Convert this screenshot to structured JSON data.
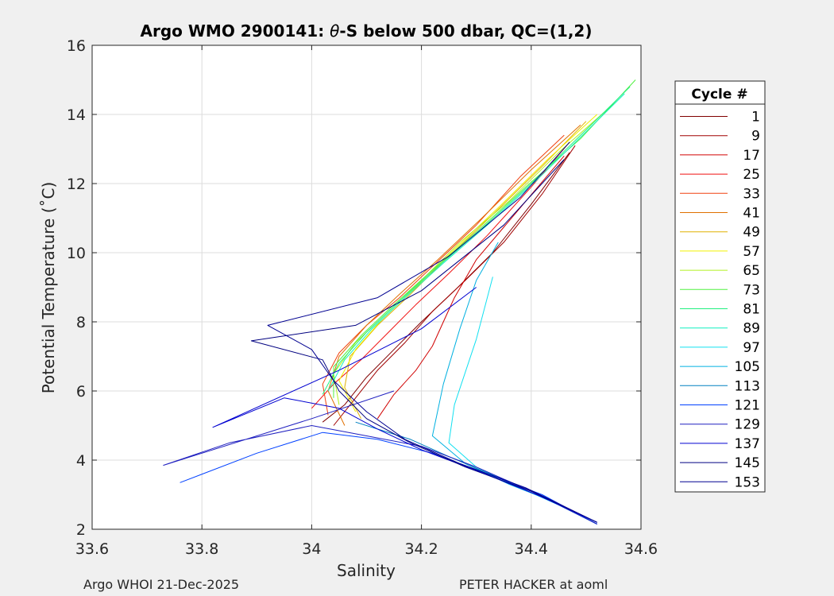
{
  "footer": {
    "left": "Argo WHOI 21-Dec-2025",
    "right": "PETER HACKER at aoml"
  },
  "chart_data": {
    "type": "line",
    "title_prefix": "Argo WMO 2900141: ",
    "title_theta": "θ",
    "title_suffix": "-S below 500 dbar,  QC=(1,2)",
    "xlabel": "Salinity",
    "ylabel": "Potential Temperature (˚C)",
    "xlim": [
      33.6,
      34.6
    ],
    "ylim": [
      2,
      16
    ],
    "xticks": [
      33.6,
      33.8,
      34,
      34.2,
      34.4,
      34.6
    ],
    "xtick_labels": [
      "33.6",
      "33.8",
      "34",
      "34.2",
      "34.4",
      "34.6"
    ],
    "yticks": [
      2,
      4,
      6,
      8,
      10,
      12,
      14,
      16
    ],
    "ytick_labels": [
      "2",
      "4",
      "6",
      "8",
      "10",
      "12",
      "14",
      "16"
    ],
    "grid": true,
    "legend": {
      "title": "Cycle #",
      "placement": "outside-right",
      "entries": [
        {
          "label": "1",
          "color": "#800000"
        },
        {
          "label": "9",
          "color": "#a00000"
        },
        {
          "label": "17",
          "color": "#d00000"
        },
        {
          "label": "25",
          "color": "#f01010"
        },
        {
          "label": "33",
          "color": "#f04010"
        },
        {
          "label": "41",
          "color": "#e07000"
        },
        {
          "label": "49",
          "color": "#e0b000"
        },
        {
          "label": "57",
          "color": "#f0f000"
        },
        {
          "label": "65",
          "color": "#b0f020"
        },
        {
          "label": "73",
          "color": "#50f040"
        },
        {
          "label": "81",
          "color": "#20f080"
        },
        {
          "label": "89",
          "color": "#10f0c0"
        },
        {
          "label": "97",
          "color": "#10e0f0"
        },
        {
          "label": "105",
          "color": "#00b0e0"
        },
        {
          "label": "113",
          "color": "#0080c0"
        },
        {
          "label": "121",
          "color": "#0040ff"
        },
        {
          "label": "129",
          "color": "#2020c0"
        },
        {
          "label": "137",
          "color": "#0000d0"
        },
        {
          "label": "145",
          "color": "#000080"
        },
        {
          "label": "153",
          "color": "#000090"
        }
      ]
    },
    "series": [
      {
        "color": "#800000",
        "x": [
          34.02,
          34.06,
          34.1,
          34.15,
          34.2,
          34.26,
          34.33,
          34.4,
          34.47
        ],
        "y": [
          5.1,
          5.6,
          6.4,
          7.2,
          8.0,
          8.9,
          10.0,
          11.4,
          12.9
        ]
      },
      {
        "color": "#a00000",
        "x": [
          34.04,
          34.08,
          34.12,
          34.17,
          34.22,
          34.28,
          34.35,
          34.42,
          34.48
        ],
        "y": [
          5.0,
          5.8,
          6.6,
          7.4,
          8.3,
          9.2,
          10.3,
          11.7,
          13.1
        ]
      },
      {
        "color": "#d00000",
        "x": [
          34.12,
          34.15,
          34.19,
          34.22,
          34.24,
          34.26,
          34.3,
          34.38,
          34.46
        ],
        "y": [
          5.2,
          5.9,
          6.6,
          7.3,
          8.0,
          8.7,
          9.8,
          11.3,
          12.8
        ]
      },
      {
        "color": "#f01010",
        "x": [
          34.0,
          34.04,
          34.09,
          34.14,
          34.19,
          34.25,
          34.32,
          34.4,
          34.47
        ],
        "y": [
          5.5,
          6.2,
          6.9,
          7.7,
          8.5,
          9.4,
          10.5,
          11.9,
          13.2
        ]
      },
      {
        "color": "#f04010",
        "x": [
          34.03,
          34.02,
          34.05,
          34.1,
          34.16,
          34.22,
          34.3,
          34.38,
          34.46
        ],
        "y": [
          5.3,
          6.2,
          7.1,
          7.9,
          8.7,
          9.6,
          10.8,
          12.2,
          13.4
        ]
      },
      {
        "color": "#e07000",
        "x": [
          34.06,
          34.03,
          34.05,
          34.1,
          34.16,
          34.23,
          34.31,
          34.4,
          34.49
        ],
        "y": [
          5.0,
          6.0,
          7.0,
          7.9,
          8.8,
          9.8,
          11.0,
          12.4,
          13.7
        ]
      },
      {
        "color": "#e0b000",
        "x": [
          34.09,
          34.06,
          34.07,
          34.12,
          34.18,
          34.25,
          34.33,
          34.42,
          34.5
        ],
        "y": [
          5.2,
          6.1,
          7.0,
          7.9,
          8.8,
          9.9,
          11.1,
          12.5,
          13.8
        ]
      },
      {
        "color": "#f0f000",
        "x": [
          34.08,
          34.05,
          34.08,
          34.13,
          34.19,
          34.26,
          34.34,
          34.43,
          34.52
        ],
        "y": [
          5.4,
          6.3,
          7.2,
          8.1,
          9.0,
          10.1,
          11.3,
          12.7,
          14.0
        ]
      },
      {
        "color": "#b0f020",
        "x": [
          34.05,
          34.04,
          34.08,
          34.14,
          34.2,
          34.27,
          34.36,
          34.45,
          34.55
        ],
        "y": [
          5.6,
          6.5,
          7.4,
          8.3,
          9.2,
          10.3,
          11.5,
          12.9,
          14.3
        ]
      },
      {
        "color": "#50f040",
        "x": [
          34.04,
          34.04,
          34.09,
          34.15,
          34.22,
          34.3,
          34.39,
          34.49,
          34.59
        ],
        "y": [
          5.8,
          6.7,
          7.6,
          8.5,
          9.5,
          10.6,
          11.9,
          13.3,
          15.0
        ]
      },
      {
        "color": "#20f080",
        "x": [
          34.02,
          34.05,
          34.1,
          34.16,
          34.23,
          34.31,
          34.4,
          34.49,
          34.58
        ],
        "y": [
          5.9,
          6.8,
          7.7,
          8.6,
          9.6,
          10.7,
          12.0,
          13.4,
          14.8
        ]
      },
      {
        "color": "#10f0c0",
        "x": [
          34.03,
          34.06,
          34.11,
          34.17,
          34.24,
          34.32,
          34.41,
          34.5,
          34.57
        ],
        "y": [
          6.0,
          6.9,
          7.8,
          8.7,
          9.7,
          10.8,
          12.1,
          13.5,
          14.6
        ]
      },
      {
        "color": "#10e0f0",
        "x": [
          34.52,
          34.45,
          34.38,
          34.3,
          34.25,
          34.26,
          34.3,
          34.33
        ],
        "y": [
          2.15,
          2.7,
          3.2,
          3.8,
          4.5,
          5.6,
          7.5,
          9.3
        ]
      },
      {
        "color": "#00b0e0",
        "x": [
          34.52,
          34.44,
          34.36,
          34.28,
          34.22,
          34.24,
          34.27,
          34.3,
          34.34
        ],
        "y": [
          2.2,
          2.8,
          3.3,
          3.9,
          4.7,
          6.2,
          7.8,
          9.2,
          10.3
        ]
      },
      {
        "color": "#0080c0",
        "x": [
          34.52,
          34.43,
          34.34,
          34.25,
          34.18,
          34.12,
          34.08
        ],
        "y": [
          2.15,
          2.9,
          3.5,
          4.1,
          4.6,
          4.9,
          5.1
        ]
      },
      {
        "color": "#0040ff",
        "x": [
          34.52,
          34.42,
          34.32,
          34.22,
          34.12,
          34.02,
          33.9,
          33.76
        ],
        "y": [
          2.15,
          3.0,
          3.6,
          4.2,
          4.6,
          4.8,
          4.2,
          3.35
        ]
      },
      {
        "color": "#2020c0",
        "x": [
          34.52,
          34.4,
          34.3,
          34.2,
          34.1,
          34.0,
          33.85,
          33.73,
          34.0,
          34.15
        ],
        "y": [
          2.15,
          3.1,
          3.8,
          4.4,
          4.7,
          5.0,
          4.5,
          3.85,
          5.2,
          6.0
        ]
      },
      {
        "color": "#0000d0",
        "x": [
          34.52,
          34.41,
          34.3,
          34.2,
          34.12,
          34.05,
          33.95,
          33.82,
          34.05,
          34.2,
          34.3
        ],
        "y": [
          2.2,
          3.0,
          3.7,
          4.3,
          4.9,
          5.5,
          5.8,
          4.95,
          6.6,
          7.8,
          9.0
        ]
      },
      {
        "color": "#000080",
        "x": [
          34.52,
          34.4,
          34.28,
          34.18,
          34.1,
          34.05,
          34.02,
          33.89,
          34.08,
          34.2,
          34.35,
          34.46
        ],
        "y": [
          2.2,
          3.1,
          3.8,
          4.5,
          5.2,
          6.0,
          6.9,
          7.45,
          7.9,
          8.9,
          10.8,
          12.7
        ]
      },
      {
        "color": "#000090",
        "x": [
          34.52,
          34.39,
          34.27,
          34.17,
          34.1,
          34.04,
          34.0,
          33.92,
          34.12,
          34.25,
          34.38,
          34.47
        ],
        "y": [
          2.2,
          3.2,
          3.9,
          4.6,
          5.4,
          6.3,
          7.2,
          7.9,
          8.7,
          9.9,
          11.6,
          13.2
        ]
      }
    ]
  }
}
